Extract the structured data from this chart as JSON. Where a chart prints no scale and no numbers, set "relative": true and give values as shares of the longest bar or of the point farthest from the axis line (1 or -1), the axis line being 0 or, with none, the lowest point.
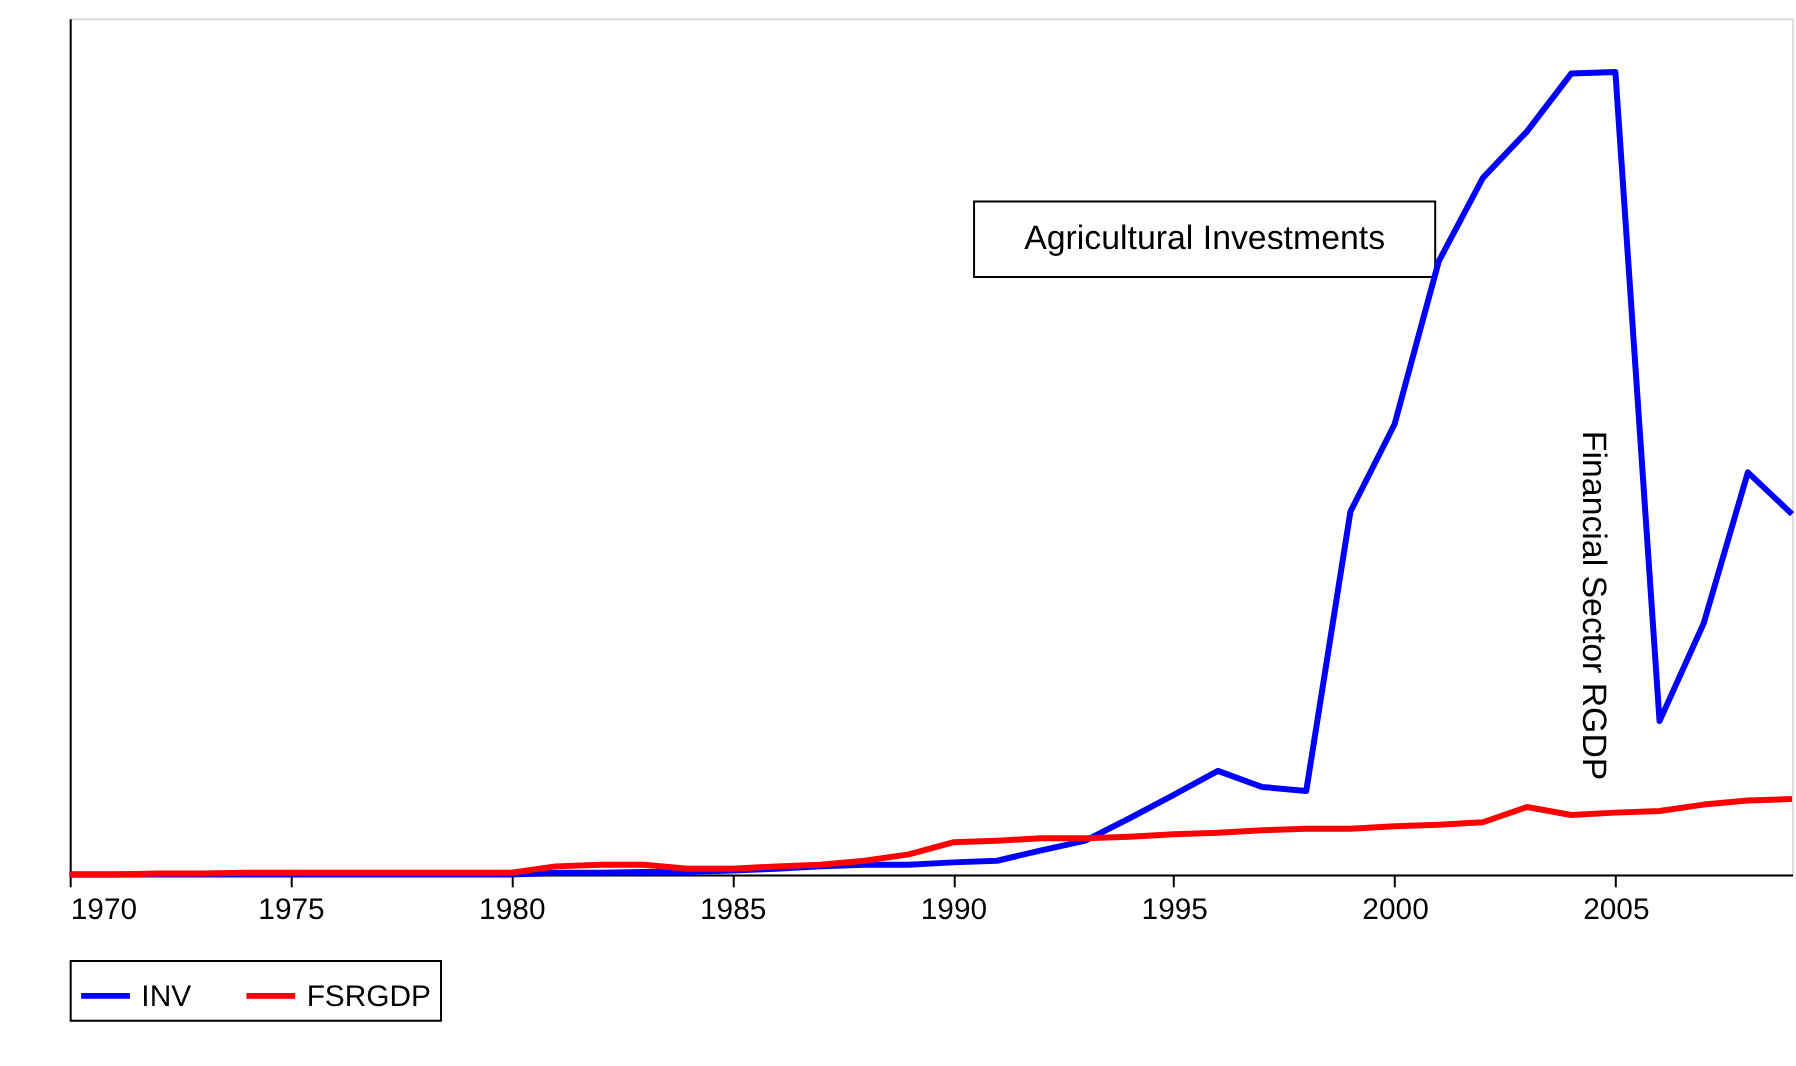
{
  "chart_data": {
    "type": "line",
    "relative": true,
    "xlim": [
      1970,
      2009
    ],
    "xticks": [
      1970,
      1975,
      1980,
      1985,
      1990,
      1995,
      2000,
      2005
    ],
    "x": [
      1970,
      1971,
      1972,
      1973,
      1974,
      1975,
      1976,
      1977,
      1978,
      1979,
      1980,
      1981,
      1982,
      1983,
      1984,
      1985,
      1986,
      1987,
      1988,
      1989,
      1990,
      1991,
      1992,
      1993,
      1994,
      1995,
      1996,
      1997,
      1998,
      1999,
      2000,
      2001,
      2002,
      2003,
      2004,
      2005,
      2006,
      2007,
      2008,
      2009
    ],
    "series": [
      {
        "name": "INV",
        "color": "#0000ff",
        "values": [
          0,
          0,
          0,
          0,
          0,
          0,
          0,
          0,
          0,
          0,
          0,
          0.002,
          0.002,
          0.003,
          0.003,
          0.005,
          0.007,
          0.01,
          0.012,
          0.012,
          0.015,
          0.017,
          0.03,
          0.042,
          0.07,
          0.099,
          0.129,
          0.109,
          0.104,
          0.452,
          0.561,
          0.764,
          0.868,
          0.926,
          0.998,
          1.0,
          0.191,
          0.313,
          0.501,
          0.449
        ]
      },
      {
        "name": "FSRGDP",
        "color": "#ff0000",
        "values": [
          0,
          0,
          0.001,
          0.001,
          0.002,
          0.002,
          0.002,
          0.002,
          0.002,
          0.002,
          0.002,
          0.01,
          0.012,
          0.012,
          0.007,
          0.007,
          0.01,
          0.012,
          0.017,
          0.025,
          0.04,
          0.042,
          0.045,
          0.045,
          0.047,
          0.05,
          0.052,
          0.055,
          0.057,
          0.057,
          0.06,
          0.062,
          0.065,
          0.084,
          0.074,
          0.077,
          0.079,
          0.087,
          0.092,
          0.094
        ]
      }
    ],
    "annotations": [
      "Agricultural Investments",
      "Financial Sector RGDP"
    ],
    "grid": false,
    "legend": "bottom"
  }
}
